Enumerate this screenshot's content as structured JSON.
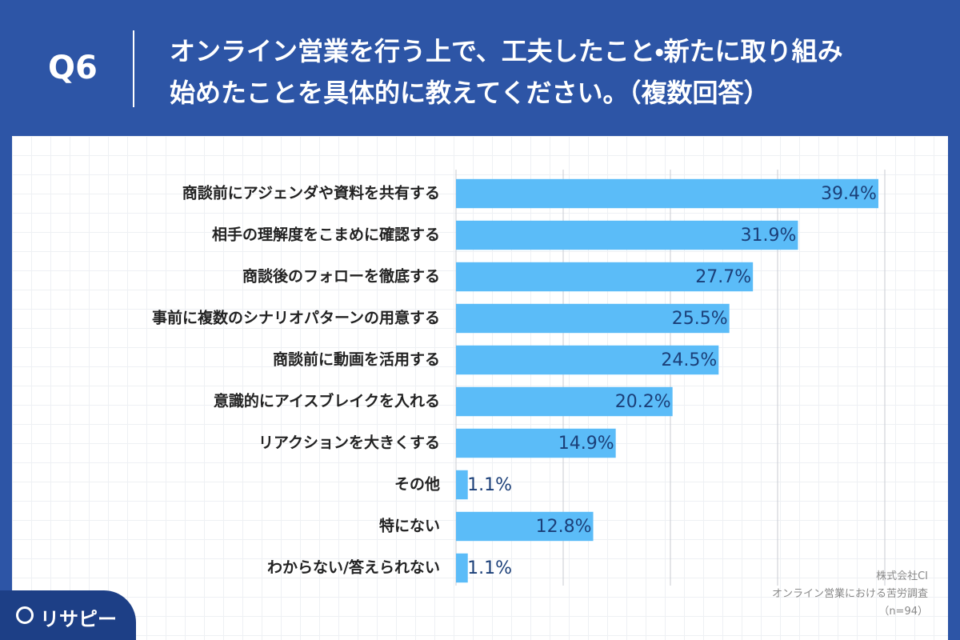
{
  "header": {
    "q": "Q6",
    "title_lines": [
      "オンライン営業を行う上で、工夫したこと・新たに取り組み",
      "始めたことを具体的に教えてください。（複数回答）"
    ]
  },
  "chart_data": {
    "type": "bar",
    "orientation": "horizontal",
    "categories": [
      "商談前にアジェンダや資料を共有する",
      "相手の理解度をこまめに確認する",
      "商談後のフォローを徹底する",
      "事前に複数のシナリオパターンの用意する",
      "商談前に動画を活用する",
      "意識的にアイスブレイクを入れる",
      "リアクションを大きくする",
      "その他",
      "特にない",
      "わからない/答えられない"
    ],
    "values": [
      39.4,
      31.9,
      27.7,
      25.5,
      24.5,
      20.2,
      14.9,
      1.1,
      12.8,
      1.1
    ],
    "value_labels": [
      "39.4%",
      "31.9%",
      "27.7%",
      "25.5%",
      "24.5%",
      "20.2%",
      "14.9%",
      "1.1%",
      "12.8%",
      "1.1%"
    ],
    "color": "#5bbcf8",
    "label_color": "#1b3f78",
    "xlim": [
      0,
      40
    ],
    "grid_lines": [
      0,
      10,
      20,
      30,
      40
    ]
  },
  "notes": [
    "株式会社CI",
    "オンライン営業における苦労調査",
    "（n=94）"
  ],
  "logo": "リサピー"
}
